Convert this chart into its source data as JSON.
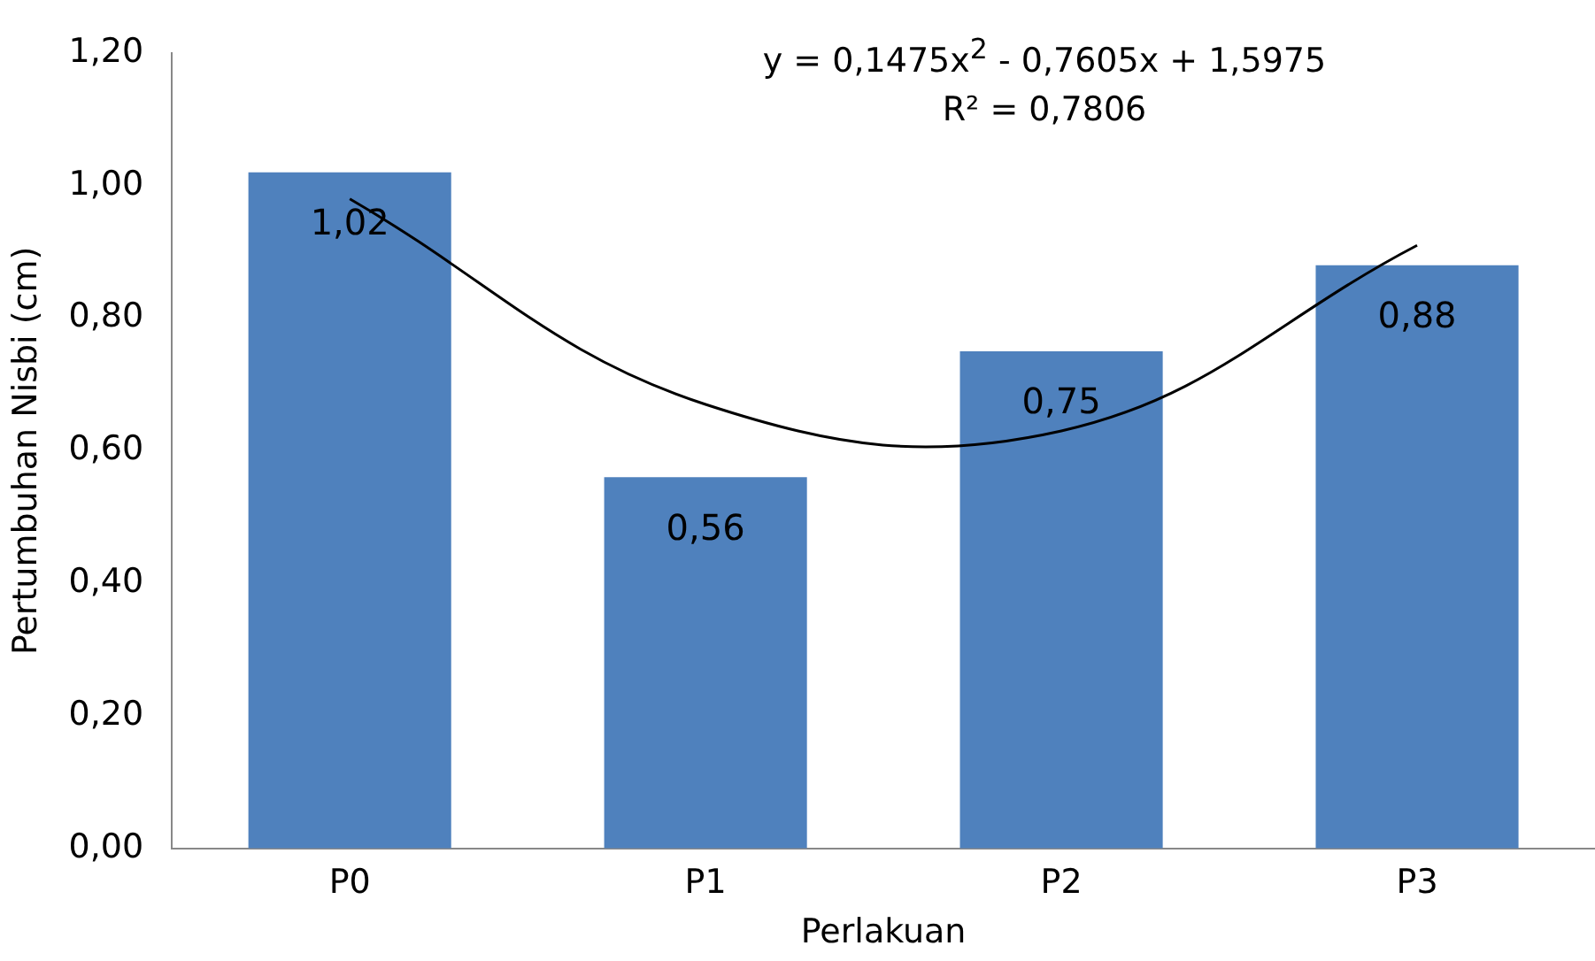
{
  "chart_data": {
    "type": "bar",
    "xlabel": "Perlakuan",
    "ylabel": "Pertumbuhan Nisbi (cm)",
    "categories": [
      "P0",
      "P1",
      "P2",
      "P3"
    ],
    "series": [
      {
        "color": "#4f81bd",
        "values": [
          1.02,
          0.56,
          0.75,
          0.88
        ],
        "value_labels": [
          "1,02",
          "0,56",
          "0,75",
          "0,88"
        ]
      },
      {
        "type": "line",
        "color": "#000000",
        "values": [
          0.98,
          0.67,
          0.63,
          0.91
        ]
      }
    ],
    "ylim": [
      0,
      1.2
    ],
    "yticks": [
      {
        "value": 0,
        "label": "0,00"
      },
      {
        "value": 0.2,
        "label": "0,20"
      },
      {
        "value": 0.4,
        "label": "0,40"
      },
      {
        "value": 0.6,
        "label": "0,60"
      },
      {
        "value": 0.8,
        "label": "0,80"
      },
      {
        "value": 1,
        "label": "1,00"
      },
      {
        "value": 1.2,
        "label": "1,20"
      }
    ],
    "annotations": [
      "y = 0,1475x$^{2}$ - 0,7605x + 1,5975",
      "R² = 0,7806"
    ],
    "grid": false,
    "legend": false,
    "marker": "none",
    "line_style": "solid"
  }
}
